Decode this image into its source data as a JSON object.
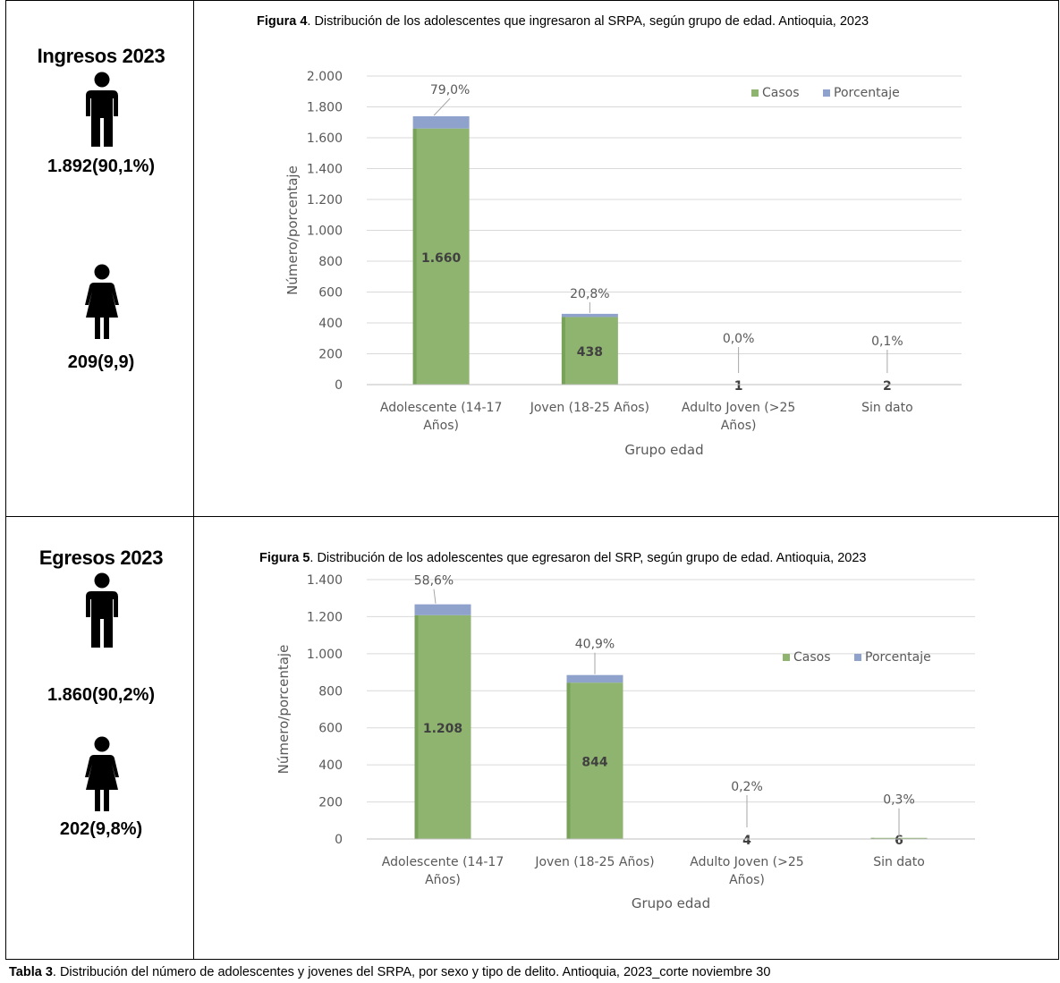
{
  "panels": [
    {
      "side_title": "Ingresos 2023",
      "male_value": "1.892(90,1%)",
      "female_value": "209(9,9)"
    },
    {
      "side_title": "Egresos 2023",
      "male_value": "1.860(90,2%)",
      "female_value": "202(9,8%)"
    }
  ],
  "figures": [
    {
      "label": "Figura 4",
      "text": ". Distribución de los adolescentes que ingresaron al SRPA, según grupo de edad. Antioquia, 2023"
    },
    {
      "label": "Figura 5",
      "text": ". Distribución de los adolescentes que egresaron del SRP, según grupo de edad. Antioquia, 2023"
    }
  ],
  "footer": {
    "label": "Tabla 3",
    "text": ". Distribución del número de adolescentes y jovenes del SRPA, por sexo y tipo de delito. Antioquia, 2023_corte noviembre 30"
  },
  "colors": {
    "casos": "#8fb46f",
    "casos_dark": "#5e8c3f",
    "porcentaje": "#8fa2cc",
    "grid": "#d9d9d9",
    "axis_text": "#595959"
  },
  "chart_data": [
    {
      "type": "bar",
      "stacked": true,
      "categories": [
        [
          "Adolescente (14-17",
          "Años)"
        ],
        [
          "Joven (18-25 Años)"
        ],
        [
          "Adulto Joven (>25",
          "Años)"
        ],
        [
          "Sin dato"
        ]
      ],
      "series": [
        {
          "name": "Casos",
          "values": [
            1660,
            438,
            1,
            2
          ],
          "labels": [
            "1.660",
            "438",
            "1",
            "2"
          ]
        },
        {
          "name": "Porcentaje",
          "values": [
            79.0,
            20.8,
            0.0,
            0.1
          ],
          "labels": [
            "79,0%",
            "20,8%",
            "0,0%",
            "0,1%"
          ]
        }
      ],
      "xlabel": "Grupo edad",
      "ylabel": "Número/porcentaje",
      "ylim": [
        0,
        2000
      ],
      "yticks": [
        0,
        200,
        400,
        600,
        800,
        1000,
        1200,
        1400,
        1600,
        1800,
        2000
      ],
      "ytick_labels": [
        "0",
        "200",
        "400",
        "600",
        "800",
        "1.000",
        "1.200",
        "1.400",
        "1.600",
        "1.800",
        "2.000"
      ],
      "legend": "top-right"
    },
    {
      "type": "bar",
      "stacked": true,
      "categories": [
        [
          "Adolescente (14-17",
          "Años)"
        ],
        [
          "Joven (18-25 Años)"
        ],
        [
          "Adulto Joven (>25",
          "Años)"
        ],
        [
          "Sin dato"
        ]
      ],
      "series": [
        {
          "name": "Casos",
          "values": [
            1208,
            844,
            4,
            6
          ],
          "labels": [
            "1.208",
            "844",
            "4",
            "6"
          ]
        },
        {
          "name": "Porcentaje",
          "values": [
            58.6,
            40.9,
            0.2,
            0.3
          ],
          "labels": [
            "58,6%",
            "40,9%",
            "0,2%",
            "0,3%"
          ]
        }
      ],
      "xlabel": "Grupo edad",
      "ylabel": "Número/porcentaje",
      "ylim": [
        0,
        1400
      ],
      "yticks": [
        0,
        200,
        400,
        600,
        800,
        1000,
        1200,
        1400
      ],
      "ytick_labels": [
        "0",
        "200",
        "400",
        "600",
        "800",
        "1.000",
        "1.200",
        "1.400"
      ],
      "legend": "top-right"
    }
  ]
}
